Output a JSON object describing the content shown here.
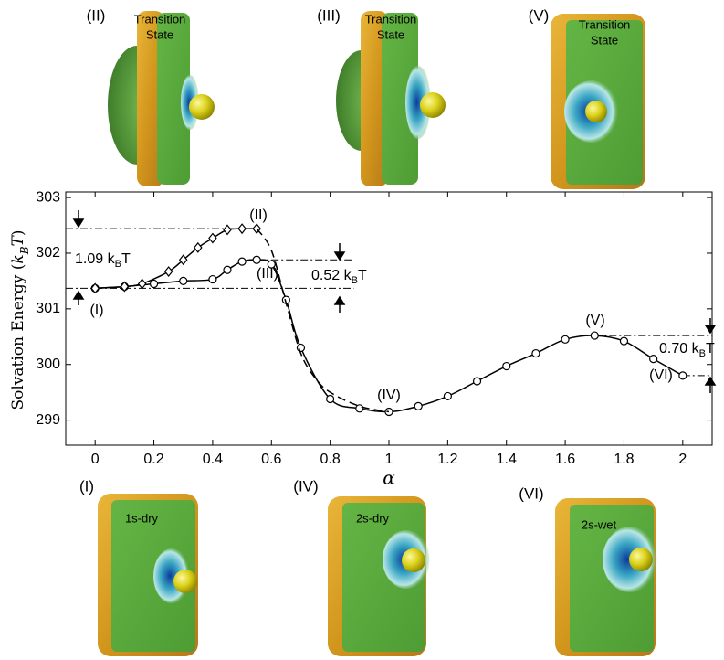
{
  "chart_data": {
    "type": "line",
    "ylabel": [
      "Solvation Energy (",
      "k",
      "B",
      "T",
      ")"
    ],
    "xlabel": "α",
    "xlim": [
      -0.1,
      2.1
    ],
    "ylim": [
      298.55,
      303.1
    ],
    "xticks": [
      0,
      0.2,
      0.4,
      0.6,
      0.8,
      1,
      1.2,
      1.4,
      1.6,
      1.8,
      2
    ],
    "yticks": [
      299,
      300,
      301,
      302,
      303
    ],
    "series": [
      {
        "marker": "circle",
        "dash": false,
        "color": "#000000",
        "x": [
          0,
          0.1,
          0.2,
          0.3,
          0.4,
          0.45,
          0.5,
          0.55,
          0.6,
          0.65,
          0.7,
          0.8,
          0.9,
          1,
          1.1,
          1.2,
          1.3,
          1.4,
          1.5,
          1.6,
          1.7,
          1.8,
          1.9,
          2
        ],
        "values": [
          301.37,
          301.4,
          301.45,
          301.5,
          301.53,
          301.7,
          301.85,
          301.88,
          301.8,
          301.16,
          300.3,
          299.38,
          299.21,
          299.15,
          299.25,
          299.43,
          299.7,
          299.97,
          300.2,
          300.45,
          300.52,
          300.42,
          300.1,
          299.8
        ]
      },
      {
        "marker": "diamond",
        "dash": false,
        "color": "#000000",
        "x": [
          0,
          0.1,
          0.16,
          0.25,
          0.3,
          0.35,
          0.4,
          0.45,
          0.5,
          0.55
        ],
        "values": [
          301.37,
          301.4,
          301.45,
          301.67,
          301.88,
          302.1,
          302.27,
          302.42,
          302.44,
          302.44
        ]
      },
      {
        "marker": "none",
        "dash": true,
        "color": "#000000",
        "x": [
          0.55,
          0.6,
          0.65,
          0.7,
          0.75,
          0.8,
          0.9,
          1
        ],
        "values": [
          302.44,
          302.05,
          301.1,
          300.2,
          299.75,
          299.5,
          299.25,
          299.15
        ]
      }
    ],
    "reference_lines": [
      {
        "y": 302.44,
        "x": [
          -0.1,
          0.55
        ]
      },
      {
        "y": 301.37,
        "x": [
          -0.1,
          0.88
        ]
      },
      {
        "y": 301.88,
        "x": [
          0.55,
          0.88
        ]
      },
      {
        "y": 300.52,
        "x": [
          1.7,
          2.1
        ]
      },
      {
        "y": 299.8,
        "x": [
          2,
          2.1
        ]
      }
    ],
    "annotations": [
      {
        "parts": [
          "(II)"
        ]
      },
      {
        "parts": [
          "(III)"
        ]
      },
      {
        "parts": [
          "(I)"
        ]
      },
      {
        "parts": [
          "(IV)"
        ]
      },
      {
        "parts": [
          "(V)"
        ]
      },
      {
        "parts": [
          "(VI)"
        ]
      },
      {
        "parts": [
          "1.09 k",
          "B",
          "T"
        ]
      },
      {
        "parts": [
          "0.52 k",
          "B",
          "T"
        ]
      },
      {
        "parts": [
          "0.70 k",
          "B",
          "T"
        ]
      }
    ]
  },
  "panels": [
    {
      "label": "(II)",
      "caption": [
        "Transition",
        "State"
      ]
    },
    {
      "label": "(III)",
      "caption": [
        "Transition",
        "State"
      ]
    },
    {
      "label": "(V)",
      "caption": [
        "Transition",
        "State"
      ]
    },
    {
      "label": "(I)",
      "caption": [
        "1s-dry"
      ]
    },
    {
      "label": "(IV)",
      "caption": [
        "2s-dry"
      ]
    },
    {
      "label": "(VI)",
      "caption": [
        "2s-wet"
      ]
    }
  ]
}
